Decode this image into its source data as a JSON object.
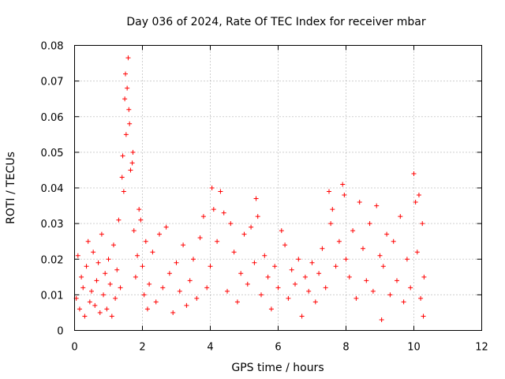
{
  "chart_data": {
    "type": "scatter",
    "title": "Day 036 of 2024, Rate Of TEC Index for receiver mbar",
    "xlabel": "GPS time / hours",
    "ylabel": "ROTI / TECUs",
    "xlim": [
      0,
      12
    ],
    "ylim": [
      0,
      0.08
    ],
    "x_ticks": [
      0,
      2,
      4,
      6,
      8,
      10,
      12
    ],
    "y_ticks": [
      0,
      0.01,
      0.02,
      0.03,
      0.04,
      0.05,
      0.06,
      0.07,
      0.08
    ],
    "x_tick_labels": [
      "0",
      "2",
      "4",
      "6",
      "8",
      "10",
      "12"
    ],
    "y_tick_labels": [
      "0",
      "0.01",
      "0.02",
      "0.03",
      "0.04",
      "0.05",
      "0.06",
      "0.07",
      "0.08"
    ],
    "grid": true,
    "marker": "+",
    "color": "#ff0000",
    "series": [
      {
        "name": "ROTI",
        "points": [
          [
            0.05,
            0.009
          ],
          [
            0.1,
            0.021
          ],
          [
            0.15,
            0.006
          ],
          [
            0.2,
            0.015
          ],
          [
            0.25,
            0.012
          ],
          [
            0.3,
            0.004
          ],
          [
            0.35,
            0.018
          ],
          [
            0.4,
            0.025
          ],
          [
            0.45,
            0.008
          ],
          [
            0.5,
            0.011
          ],
          [
            0.55,
            0.022
          ],
          [
            0.6,
            0.007
          ],
          [
            0.65,
            0.014
          ],
          [
            0.7,
            0.019
          ],
          [
            0.75,
            0.005
          ],
          [
            0.8,
            0.027
          ],
          [
            0.85,
            0.01
          ],
          [
            0.9,
            0.016
          ],
          [
            0.95,
            0.006
          ],
          [
            1.0,
            0.02
          ],
          [
            1.05,
            0.013
          ],
          [
            1.1,
            0.004
          ],
          [
            1.15,
            0.024
          ],
          [
            1.2,
            0.009
          ],
          [
            1.25,
            0.017
          ],
          [
            1.3,
            0.031
          ],
          [
            1.35,
            0.012
          ],
          [
            1.4,
            0.043
          ],
          [
            1.42,
            0.049
          ],
          [
            1.45,
            0.039
          ],
          [
            1.48,
            0.065
          ],
          [
            1.5,
            0.072
          ],
          [
            1.52,
            0.055
          ],
          [
            1.55,
            0.068
          ],
          [
            1.58,
            0.0765
          ],
          [
            1.6,
            0.062
          ],
          [
            1.62,
            0.058
          ],
          [
            1.65,
            0.045
          ],
          [
            1.7,
            0.047
          ],
          [
            1.72,
            0.05
          ],
          [
            1.75,
            0.028
          ],
          [
            1.8,
            0.015
          ],
          [
            1.85,
            0.021
          ],
          [
            1.9,
            0.034
          ],
          [
            1.95,
            0.031
          ],
          [
            2.0,
            0.018
          ],
          [
            2.05,
            0.01
          ],
          [
            2.1,
            0.025
          ],
          [
            2.15,
            0.006
          ],
          [
            2.2,
            0.013
          ],
          [
            2.3,
            0.022
          ],
          [
            2.4,
            0.008
          ],
          [
            2.5,
            0.027
          ],
          [
            2.6,
            0.012
          ],
          [
            2.7,
            0.029
          ],
          [
            2.8,
            0.016
          ],
          [
            2.9,
            0.005
          ],
          [
            3.0,
            0.019
          ],
          [
            3.1,
            0.011
          ],
          [
            3.2,
            0.024
          ],
          [
            3.3,
            0.007
          ],
          [
            3.4,
            0.014
          ],
          [
            3.5,
            0.02
          ],
          [
            3.6,
            0.009
          ],
          [
            3.7,
            0.026
          ],
          [
            3.8,
            0.032
          ],
          [
            3.9,
            0.012
          ],
          [
            4.0,
            0.018
          ],
          [
            4.05,
            0.04
          ],
          [
            4.1,
            0.034
          ],
          [
            4.2,
            0.025
          ],
          [
            4.3,
            0.039
          ],
          [
            4.4,
            0.033
          ],
          [
            4.5,
            0.011
          ],
          [
            4.6,
            0.03
          ],
          [
            4.7,
            0.022
          ],
          [
            4.8,
            0.008
          ],
          [
            4.9,
            0.016
          ],
          [
            5.0,
            0.027
          ],
          [
            5.1,
            0.013
          ],
          [
            5.2,
            0.029
          ],
          [
            5.3,
            0.019
          ],
          [
            5.35,
            0.037
          ],
          [
            5.4,
            0.032
          ],
          [
            5.5,
            0.01
          ],
          [
            5.6,
            0.021
          ],
          [
            5.7,
            0.015
          ],
          [
            5.8,
            0.006
          ],
          [
            5.9,
            0.018
          ],
          [
            6.0,
            0.012
          ],
          [
            6.1,
            0.028
          ],
          [
            6.2,
            0.024
          ],
          [
            6.3,
            0.009
          ],
          [
            6.4,
            0.017
          ],
          [
            6.5,
            0.013
          ],
          [
            6.6,
            0.02
          ],
          [
            6.7,
            0.004
          ],
          [
            6.8,
            0.015
          ],
          [
            6.9,
            0.011
          ],
          [
            7.0,
            0.019
          ],
          [
            7.1,
            0.008
          ],
          [
            7.2,
            0.016
          ],
          [
            7.3,
            0.023
          ],
          [
            7.4,
            0.012
          ],
          [
            7.5,
            0.039
          ],
          [
            7.55,
            0.03
          ],
          [
            7.6,
            0.034
          ],
          [
            7.7,
            0.018
          ],
          [
            7.8,
            0.025
          ],
          [
            7.9,
            0.041
          ],
          [
            7.95,
            0.038
          ],
          [
            8.0,
            0.02
          ],
          [
            8.1,
            0.015
          ],
          [
            8.2,
            0.028
          ],
          [
            8.3,
            0.009
          ],
          [
            8.4,
            0.036
          ],
          [
            8.5,
            0.023
          ],
          [
            8.6,
            0.014
          ],
          [
            8.7,
            0.03
          ],
          [
            8.8,
            0.011
          ],
          [
            8.9,
            0.035
          ],
          [
            9.0,
            0.021
          ],
          [
            9.05,
            0.003
          ],
          [
            9.1,
            0.018
          ],
          [
            9.2,
            0.027
          ],
          [
            9.3,
            0.01
          ],
          [
            9.4,
            0.025
          ],
          [
            9.5,
            0.014
          ],
          [
            9.6,
            0.032
          ],
          [
            9.7,
            0.008
          ],
          [
            9.8,
            0.02
          ],
          [
            9.9,
            0.012
          ],
          [
            10.0,
            0.044
          ],
          [
            10.05,
            0.036
          ],
          [
            10.1,
            0.022
          ],
          [
            10.15,
            0.038
          ],
          [
            10.2,
            0.009
          ],
          [
            10.25,
            0.03
          ],
          [
            10.28,
            0.004
          ],
          [
            10.3,
            0.015
          ]
        ]
      }
    ]
  }
}
